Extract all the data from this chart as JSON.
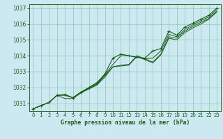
{
  "title": "Graphe pression niveau de la mer (hPa)",
  "bg_color": "#cce8f0",
  "grid_color": "#99ccbb",
  "line_color": "#1a5c1a",
  "spine_color": "#336633",
  "xlim": [
    -0.5,
    23.5
  ],
  "ylim": [
    1030.5,
    1037.25
  ],
  "xticks": [
    0,
    1,
    2,
    3,
    4,
    5,
    6,
    7,
    8,
    9,
    10,
    11,
    12,
    13,
    14,
    15,
    16,
    17,
    18,
    19,
    20,
    21,
    22,
    23
  ],
  "yticks": [
    1031,
    1032,
    1033,
    1034,
    1035,
    1036,
    1037
  ],
  "series": [
    [
      1030.65,
      1030.85,
      1031.05,
      1031.5,
      1031.55,
      1031.35,
      1031.7,
      1032.0,
      1032.3,
      1032.85,
      1033.85,
      1034.1,
      1034.0,
      1033.9,
      1033.85,
      1034.3,
      1034.45,
      1035.55,
      1035.3,
      1035.8,
      1036.05,
      1036.3,
      1036.55,
      1037.0
    ],
    [
      1030.65,
      1030.85,
      1031.05,
      1031.5,
      1031.55,
      1031.35,
      1031.7,
      1031.95,
      1032.25,
      1032.8,
      1033.45,
      1034.0,
      1034.0,
      1033.9,
      1033.8,
      1033.85,
      1034.3,
      1035.35,
      1035.2,
      1035.65,
      1035.95,
      1036.2,
      1036.45,
      1036.9
    ],
    [
      1030.65,
      1030.85,
      1031.05,
      1031.5,
      1031.5,
      1031.35,
      1031.7,
      1031.95,
      1032.2,
      1032.75,
      1033.3,
      1033.4,
      1033.45,
      1034.0,
      1033.8,
      1033.6,
      1034.1,
      1035.2,
      1035.1,
      1035.55,
      1035.85,
      1036.1,
      1036.35,
      1036.8
    ],
    [
      1030.65,
      1030.85,
      1031.05,
      1031.5,
      1031.3,
      1031.3,
      1031.65,
      1031.9,
      1032.15,
      1032.65,
      1033.3,
      1033.35,
      1033.4,
      1033.95,
      1033.75,
      1033.55,
      1034.05,
      1035.1,
      1035.0,
      1035.45,
      1035.75,
      1036.0,
      1036.3,
      1036.75
    ]
  ],
  "marker_series": 0
}
